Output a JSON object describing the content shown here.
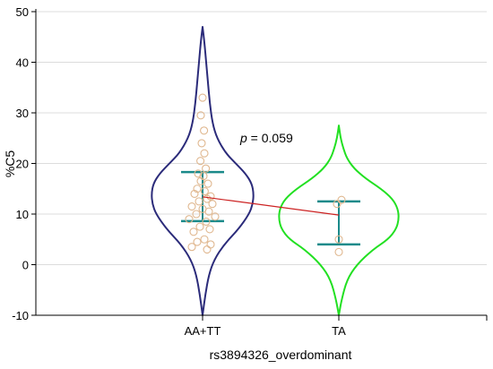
{
  "chart_data": {
    "type": "violin",
    "title": "",
    "xlabel": "rs3894326_overdominant",
    "ylabel": "%C5",
    "ylim": [
      -10,
      50
    ],
    "yticks": [
      -10,
      0,
      10,
      20,
      30,
      40,
      50
    ],
    "grid": true,
    "annotation": {
      "prefix": "p",
      "text": " = 0.059"
    },
    "categories": [
      "AA+TT",
      "TA"
    ],
    "groups": [
      {
        "name": "AA+TT",
        "color": "#2b2b7a",
        "violin": {
          "y": [
            -10,
            -6,
            -2,
            1,
            4,
            7,
            10,
            12,
            14,
            16,
            18,
            20,
            22,
            25,
            28,
            32,
            36,
            40,
            44,
            47
          ],
          "w": [
            0,
            3,
            7,
            13,
            24,
            40,
            52,
            56,
            57,
            55,
            48,
            37,
            26,
            16,
            11,
            8,
            6,
            4,
            2,
            0
          ]
        },
        "mean": 13.4,
        "ci": [
          8.6,
          18.3
        ],
        "points": [
          {
            "y": 33.0,
            "dx": 0.0
          },
          {
            "y": 29.5,
            "dx": -0.1
          },
          {
            "y": 26.5,
            "dx": 0.08
          },
          {
            "y": 24.0,
            "dx": -0.05
          },
          {
            "y": 22.0,
            "dx": 0.1
          },
          {
            "y": 20.5,
            "dx": -0.12
          },
          {
            "y": 19.0,
            "dx": 0.18
          },
          {
            "y": 18.0,
            "dx": -0.25
          },
          {
            "y": 17.5,
            "dx": 0.05
          },
          {
            "y": 16.5,
            "dx": -0.1
          },
          {
            "y": 16.0,
            "dx": 0.3
          },
          {
            "y": 15.0,
            "dx": -0.3
          },
          {
            "y": 14.5,
            "dx": 0.12
          },
          {
            "y": 14.0,
            "dx": -0.45
          },
          {
            "y": 13.5,
            "dx": 0.45
          },
          {
            "y": 13.0,
            "dx": 0.25
          },
          {
            "y": 12.5,
            "dx": -0.2
          },
          {
            "y": 12.0,
            "dx": 0.55
          },
          {
            "y": 11.5,
            "dx": -0.6
          },
          {
            "y": 11.0,
            "dx": 0.0
          },
          {
            "y": 10.5,
            "dx": 0.35
          },
          {
            "y": 10.0,
            "dx": -0.35
          },
          {
            "y": 9.5,
            "dx": 0.7
          },
          {
            "y": 9.0,
            "dx": -0.75
          },
          {
            "y": 8.5,
            "dx": 0.2
          },
          {
            "y": 7.5,
            "dx": -0.15
          },
          {
            "y": 7.0,
            "dx": 0.4
          },
          {
            "y": 6.5,
            "dx": -0.5
          },
          {
            "y": 5.0,
            "dx": 0.1
          },
          {
            "y": 4.5,
            "dx": -0.3
          },
          {
            "y": 4.0,
            "dx": 0.45
          },
          {
            "y": 3.5,
            "dx": -0.6
          },
          {
            "y": 3.0,
            "dx": 0.25
          }
        ]
      },
      {
        "name": "TA",
        "color": "#22e022",
        "violin": {
          "y": [
            -10,
            -7,
            -3,
            0,
            3,
            5,
            7,
            9,
            11,
            13,
            15,
            17,
            19,
            21,
            23,
            25,
            27.5
          ],
          "w": [
            0,
            3,
            9,
            20,
            38,
            55,
            64,
            67,
            66,
            60,
            47,
            30,
            17,
            9,
            5,
            2,
            0
          ]
        },
        "mean": 9.8,
        "ci": [
          4.0,
          12.5
        ],
        "points": [
          {
            "y": 12.8,
            "dx": 0.15
          },
          {
            "y": 12.0,
            "dx": -0.1
          },
          {
            "y": 5.0,
            "dx": 0.0
          },
          {
            "y": 2.5,
            "dx": 0.0
          }
        ]
      }
    ],
    "colors": {
      "ci_bar": "#1a8a8a",
      "points": "#e0b890",
      "mean_line": "#cc2222",
      "grid": "#dcdcdc",
      "axis": "#000000"
    }
  }
}
